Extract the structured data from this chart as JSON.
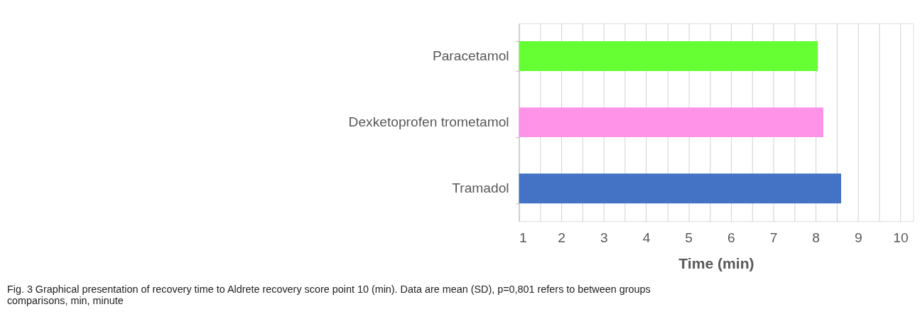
{
  "chart_data": {
    "type": "bar",
    "orientation": "horizontal",
    "categories": [
      null,
      "Paracetamol",
      "Dexketoprofen trometamol",
      "Tramadol"
    ],
    "values": [
      null,
      8.05,
      8.18,
      8.6
    ],
    "colors": [
      "#66ff33",
      "#66ff33",
      "#ff93e8",
      "#4472c4"
    ],
    "xlabel": "Time (min)",
    "xlim": [
      1,
      10.3
    ],
    "xticks": [
      1,
      {
        "value": 1.5,
        "label": null
      },
      2,
      {
        "value": 2.5,
        "label": null
      },
      3,
      {
        "value": 3.5,
        "label": null
      },
      4,
      {
        "value": 4.5,
        "label": null
      },
      5,
      {
        "value": 5.5,
        "label": null
      },
      6,
      {
        "value": 6.5,
        "label": null
      },
      7,
      {
        "value": 7.5,
        "label": null
      },
      8,
      {
        "value": 8.5,
        "label": null
      },
      9,
      {
        "value": 9.5,
        "label": null
      },
      10
    ],
    "grid": "x",
    "annotations": [
      "Fig. 3  Graphical presentation of recovery time to Aldrete recovery score point 10 (min). Data are mean (SD), p=0,801 refers to between groups comparisons, min, minute"
    ]
  }
}
